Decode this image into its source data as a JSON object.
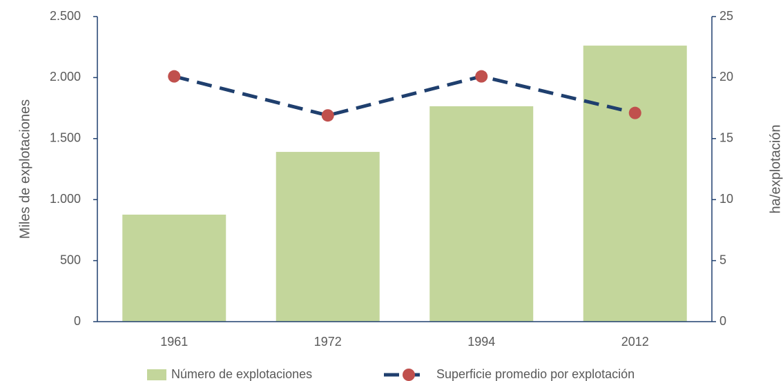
{
  "chart_data": {
    "type": "combo",
    "categories": [
      "1961",
      "1972",
      "1994",
      "2012"
    ],
    "series": [
      {
        "name": "Número de explotaciones",
        "type": "bar",
        "color": "#c3d69b",
        "values": [
          877,
          1391,
          1765,
          2262
        ]
      },
      {
        "name": "Superficie promedio por explotación",
        "type": "line",
        "axis": "y2",
        "color": "#1f3f6e",
        "marker_color": "#c0504d",
        "values": [
          20.1,
          16.9,
          20.1,
          17.1
        ]
      }
    ],
    "ylabel": "Miles de explotaciones",
    "y2label": "ha/explotación",
    "ylim": [
      0,
      2500
    ],
    "yticks": [
      0,
      500,
      {
        "value": 1000,
        "label": "1.000"
      },
      {
        "value": 1500,
        "label": "1.500"
      },
      {
        "value": 2000,
        "label": "2.000"
      },
      {
        "value": 2500,
        "label": "2.500"
      }
    ],
    "y2lim": [
      0,
      25
    ],
    "y2ticks": [
      0,
      5,
      10,
      15,
      20,
      25
    ],
    "grid": false,
    "legend": "bottom"
  }
}
